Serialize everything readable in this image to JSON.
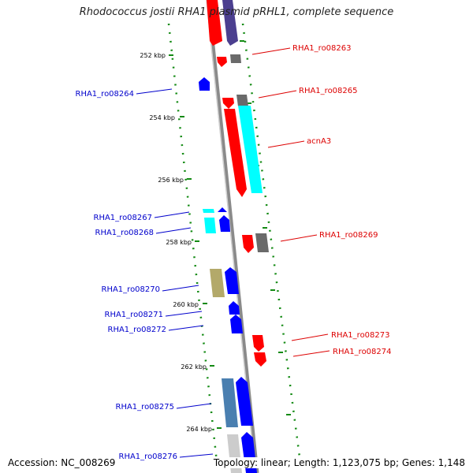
{
  "title": "Rhodococcus jostii RHA1 plasmid pRHL1, complete sequence",
  "accession": "Accession: NC_008269",
  "summary": "Topology: linear; Length: 1,123,075 bp; Genes: 1,148",
  "scale_labels": [
    "252 kbp",
    "254 kbp",
    "256 kbp",
    "258 kbp",
    "260 kbp",
    "262 kbp",
    "264 kbp"
  ],
  "gene_labels": {
    "ro08263": "RHA1_ro08263",
    "ro08264": "RHA1_ro08264",
    "ro08265": "RHA1_ro08265",
    "acnA3": "acnA3",
    "ro08267": "RHA1_ro08267",
    "ro08268": "RHA1_ro08268",
    "ro08269": "RHA1_ro08269",
    "ro08270": "RHA1_ro08270",
    "ro08271": "RHA1_ro08271",
    "ro08272": "RHA1_ro08272",
    "ro08273": "RHA1_ro08273",
    "ro08274": "RHA1_ro08274",
    "ro08275": "RHA1_ro08275",
    "ro08276": "RHA1_ro08276"
  },
  "colors": {
    "forward_label": "#0000cc",
    "reverse_label": "#dd0000",
    "tick": "#138a13",
    "backbone": "#8a8a8a",
    "red": "#ff0000",
    "blue": "#0000ff",
    "cyan": "#00ffff",
    "grey": "#6a6a6a",
    "olive": "#b3a96a",
    "steelblue": "#4a7fb0",
    "purple": "#4b3f8f",
    "lightgrey": "#cccccc"
  }
}
